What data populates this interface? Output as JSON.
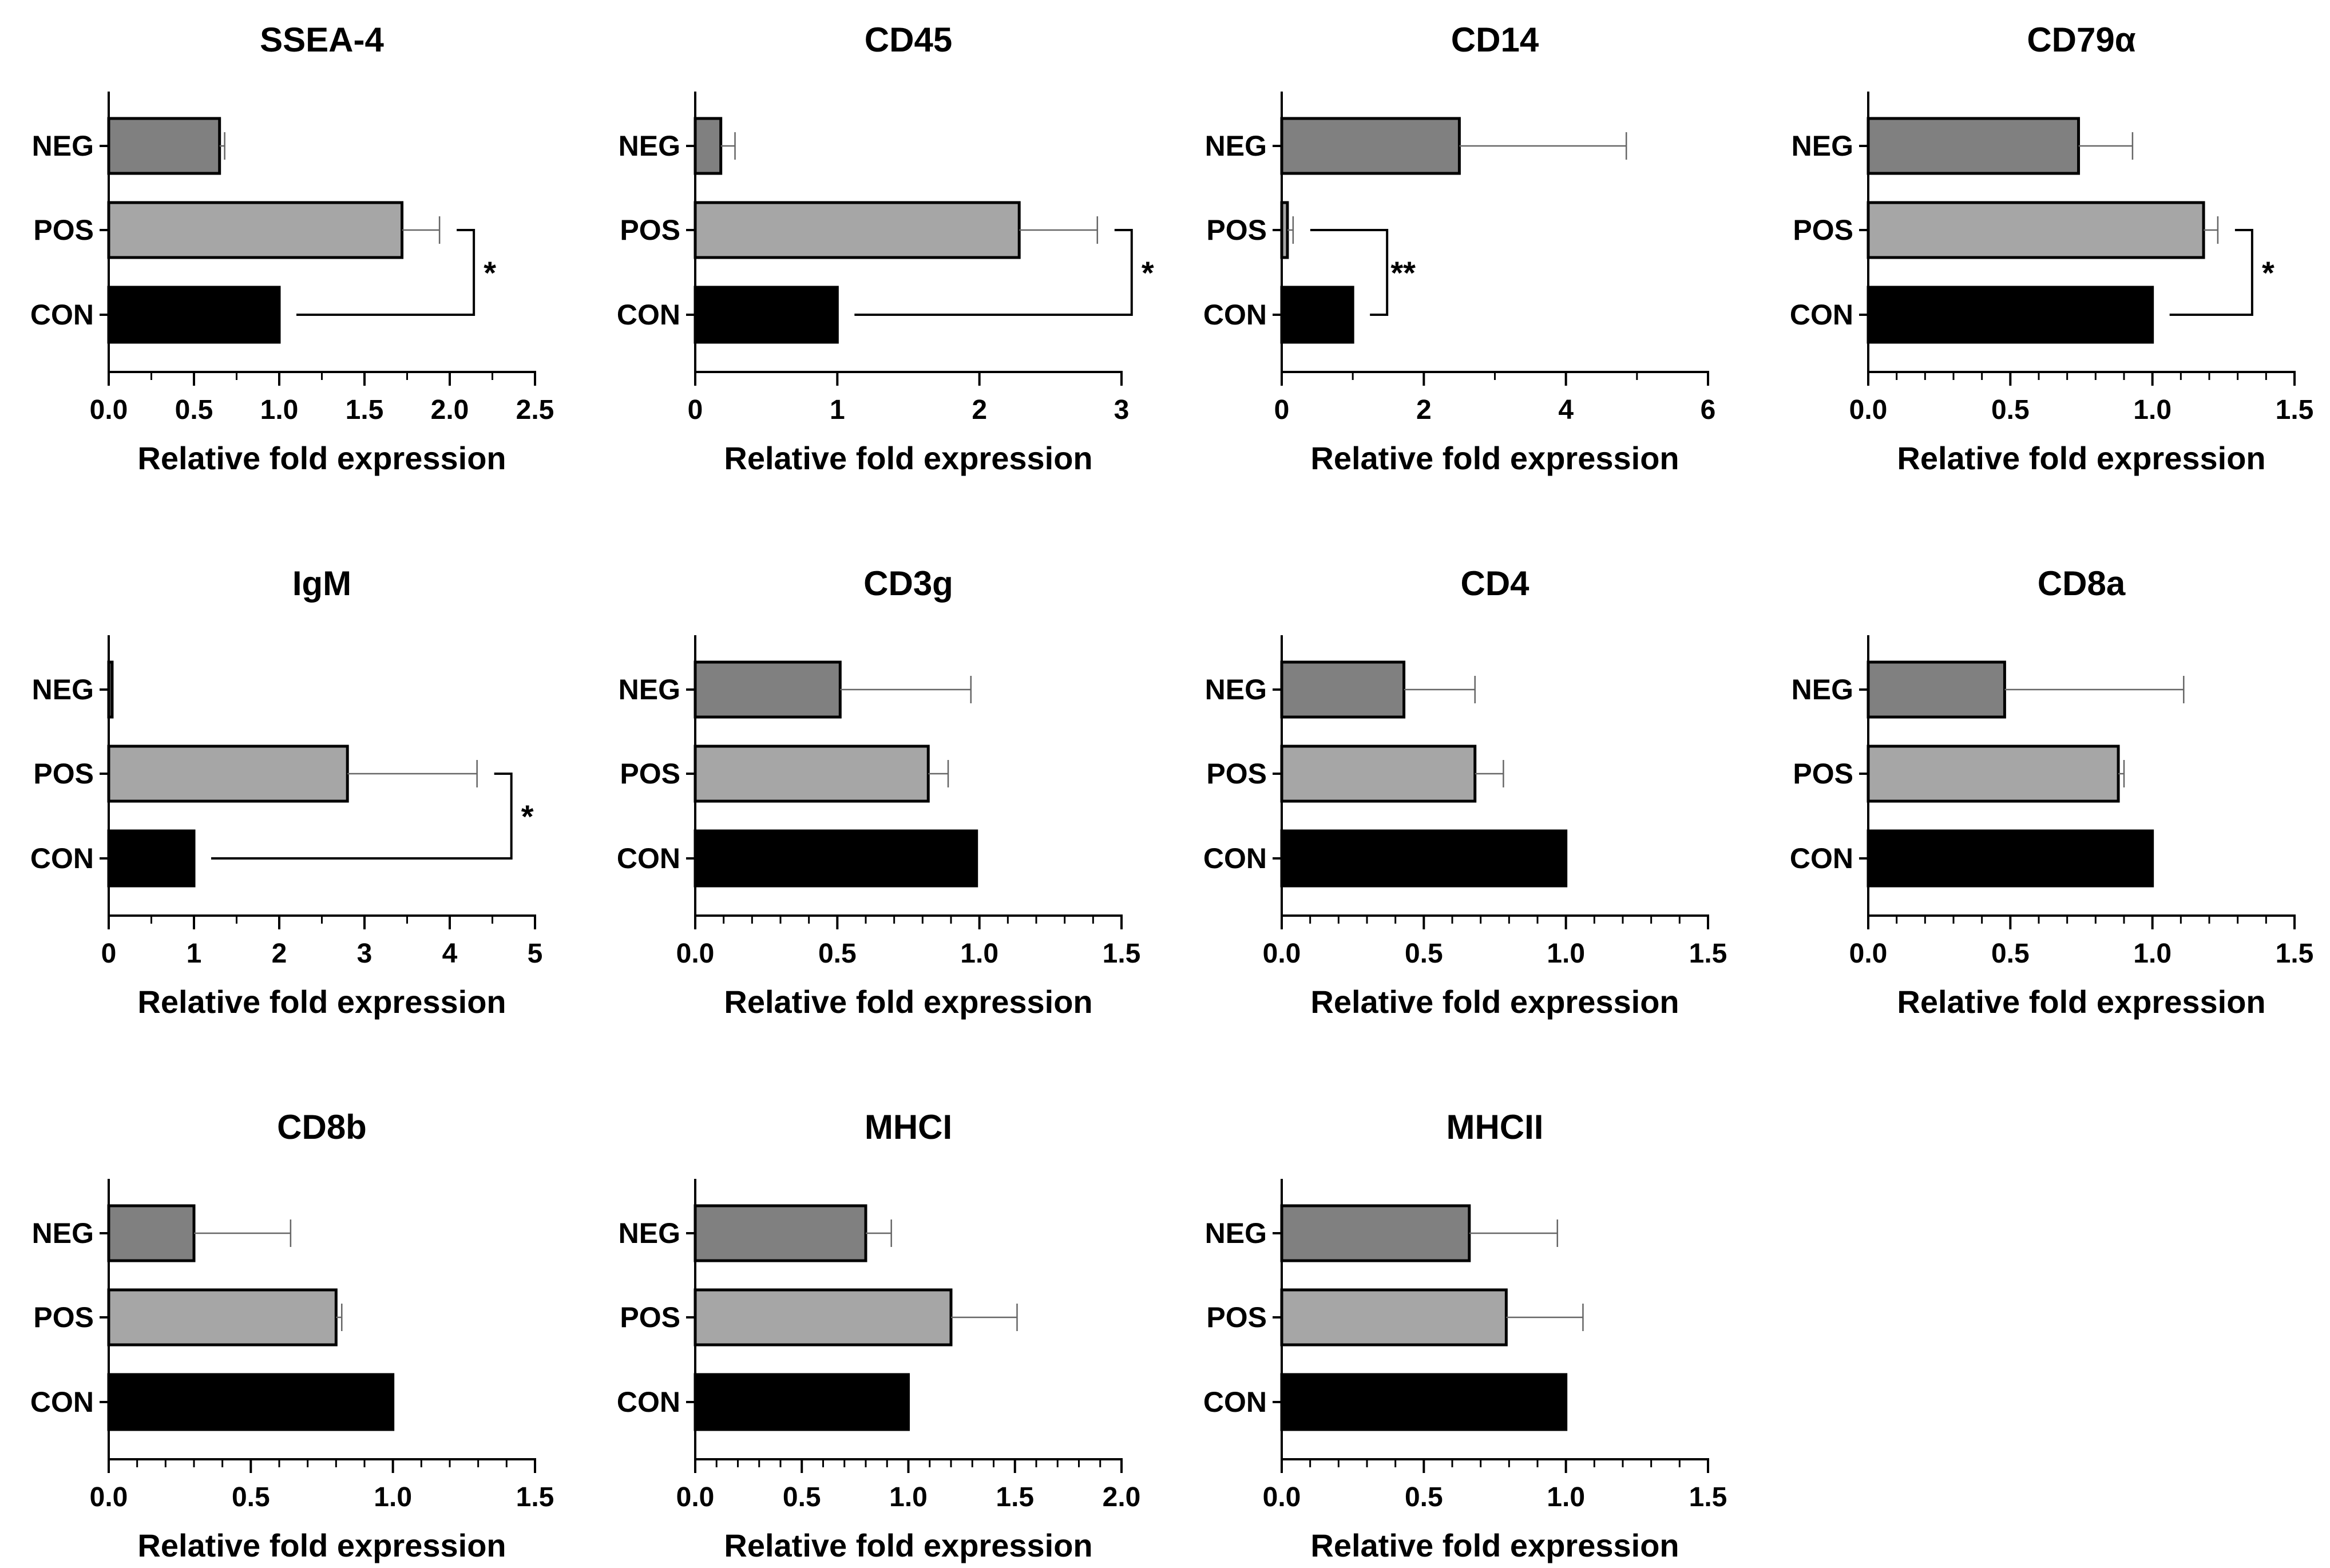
{
  "chart_data": [
    {
      "type": "bar",
      "orientation": "horizontal",
      "title": "SSEA-4",
      "categories": [
        "NEG",
        "POS",
        "CON"
      ],
      "values": [
        0.65,
        1.72,
        1.0
      ],
      "errors": [
        0.03,
        0.22,
        0
      ],
      "colors": [
        "#808080",
        "#a6a6a6",
        "#000000"
      ],
      "xlabel": "Relative fold expression",
      "xlim": [
        0,
        2.5
      ],
      "xticks": [
        "0.0",
        "0.5",
        "1.0",
        "1.5",
        "2.0",
        "2.5"
      ],
      "minor_ticks": 1,
      "significance": {
        "between": [
          "POS",
          "CON"
        ],
        "label": "*"
      }
    },
    {
      "type": "bar",
      "orientation": "horizontal",
      "title": "CD45",
      "categories": [
        "NEG",
        "POS",
        "CON"
      ],
      "values": [
        0.18,
        2.28,
        1.0
      ],
      "errors": [
        0.1,
        0.55,
        0
      ],
      "colors": [
        "#808080",
        "#a6a6a6",
        "#000000"
      ],
      "xlabel": "Relative fold expression",
      "xlim": [
        0,
        3
      ],
      "xticks": [
        "0",
        "1",
        "2",
        "3"
      ],
      "minor_ticks": 0,
      "significance": {
        "between": [
          "POS",
          "CON"
        ],
        "label": "*"
      }
    },
    {
      "type": "bar",
      "orientation": "horizontal",
      "title": "CD14",
      "categories": [
        "NEG",
        "POS",
        "CON"
      ],
      "values": [
        2.5,
        0.08,
        1.0
      ],
      "errors": [
        2.35,
        0.08,
        0
      ],
      "colors": [
        "#808080",
        "#a6a6a6",
        "#000000"
      ],
      "xlabel": "Relative fold expression",
      "xlim": [
        0,
        6
      ],
      "xticks": [
        "0",
        "2",
        "4",
        "6"
      ],
      "minor_ticks": 1,
      "significance": {
        "between": [
          "POS",
          "CON"
        ],
        "label": "**"
      }
    },
    {
      "type": "bar",
      "orientation": "horizontal",
      "title": "CD79α",
      "categories": [
        "NEG",
        "POS",
        "CON"
      ],
      "values": [
        0.74,
        1.18,
        1.0
      ],
      "errors": [
        0.19,
        0.05,
        0
      ],
      "colors": [
        "#808080",
        "#a6a6a6",
        "#000000"
      ],
      "xlabel": "Relative fold expression",
      "xlim": [
        0,
        1.5
      ],
      "xticks": [
        "0.0",
        "0.5",
        "1.0",
        "1.5"
      ],
      "minor_ticks": 4,
      "significance": {
        "between": [
          "POS",
          "CON"
        ],
        "label": "*"
      }
    },
    {
      "type": "bar",
      "orientation": "horizontal",
      "title": "IgM",
      "categories": [
        "NEG",
        "POS",
        "CON"
      ],
      "values": [
        0.04,
        2.8,
        1.0
      ],
      "errors": [
        0,
        1.52,
        0
      ],
      "colors": [
        "#808080",
        "#a6a6a6",
        "#000000"
      ],
      "xlabel": "Relative fold expression",
      "xlim": [
        0,
        5
      ],
      "xticks": [
        "0",
        "1",
        "2",
        "3",
        "4",
        "5"
      ],
      "minor_ticks": 1,
      "significance": {
        "between": [
          "POS",
          "CON"
        ],
        "label": "*"
      }
    },
    {
      "type": "bar",
      "orientation": "horizontal",
      "title": "CD3g",
      "categories": [
        "NEG",
        "POS",
        "CON"
      ],
      "values": [
        0.51,
        0.82,
        0.99
      ],
      "errors": [
        0.46,
        0.07,
        0
      ],
      "colors": [
        "#808080",
        "#a6a6a6",
        "#000000"
      ],
      "xlabel": "Relative fold expression",
      "xlim": [
        0,
        1.5
      ],
      "xticks": [
        "0.0",
        "0.5",
        "1.0",
        "1.5"
      ],
      "minor_ticks": 4,
      "significance": null
    },
    {
      "type": "bar",
      "orientation": "horizontal",
      "title": "CD4",
      "categories": [
        "NEG",
        "POS",
        "CON"
      ],
      "values": [
        0.43,
        0.68,
        1.0
      ],
      "errors": [
        0.25,
        0.1,
        0
      ],
      "colors": [
        "#808080",
        "#a6a6a6",
        "#000000"
      ],
      "xlabel": "Relative fold expression",
      "xlim": [
        0,
        1.5
      ],
      "xticks": [
        "0.0",
        "0.5",
        "1.0",
        "1.5"
      ],
      "minor_ticks": 4,
      "significance": null
    },
    {
      "type": "bar",
      "orientation": "horizontal",
      "title": "CD8a",
      "categories": [
        "NEG",
        "POS",
        "CON"
      ],
      "values": [
        0.48,
        0.88,
        1.0
      ],
      "errors": [
        0.63,
        0.02,
        0
      ],
      "colors": [
        "#808080",
        "#a6a6a6",
        "#000000"
      ],
      "xlabel": "Relative fold expression",
      "xlim": [
        0,
        1.5
      ],
      "xticks": [
        "0.0",
        "0.5",
        "1.0",
        "1.5"
      ],
      "minor_ticks": 4,
      "significance": null
    },
    {
      "type": "bar",
      "orientation": "horizontal",
      "title": "CD8b",
      "categories": [
        "NEG",
        "POS",
        "CON"
      ],
      "values": [
        0.3,
        0.8,
        1.0
      ],
      "errors": [
        0.34,
        0.02,
        0
      ],
      "colors": [
        "#808080",
        "#a6a6a6",
        "#000000"
      ],
      "xlabel": "Relative fold expression",
      "xlim": [
        0,
        1.5
      ],
      "xticks": [
        "0.0",
        "0.5",
        "1.0",
        "1.5"
      ],
      "minor_ticks": 4,
      "significance": null
    },
    {
      "type": "bar",
      "orientation": "horizontal",
      "title": "MHCI",
      "categories": [
        "NEG",
        "POS",
        "CON"
      ],
      "values": [
        0.8,
        1.2,
        1.0
      ],
      "errors": [
        0.12,
        0.31,
        0
      ],
      "colors": [
        "#808080",
        "#a6a6a6",
        "#000000"
      ],
      "xlabel": "Relative fold expression",
      "xlim": [
        0,
        2.0
      ],
      "xticks": [
        "0.0",
        "0.5",
        "1.0",
        "1.5",
        "2.0"
      ],
      "minor_ticks": 4,
      "significance": null
    },
    {
      "type": "bar",
      "orientation": "horizontal",
      "title": "MHCII",
      "categories": [
        "NEG",
        "POS",
        "CON"
      ],
      "values": [
        0.66,
        0.79,
        1.0
      ],
      "errors": [
        0.31,
        0.27,
        0
      ],
      "colors": [
        "#808080",
        "#a6a6a6",
        "#000000"
      ],
      "xlabel": "Relative fold expression",
      "xlim": [
        0,
        1.5
      ],
      "xticks": [
        "0.0",
        "0.5",
        "1.0",
        "1.5"
      ],
      "minor_ticks": 4,
      "significance": null
    }
  ]
}
